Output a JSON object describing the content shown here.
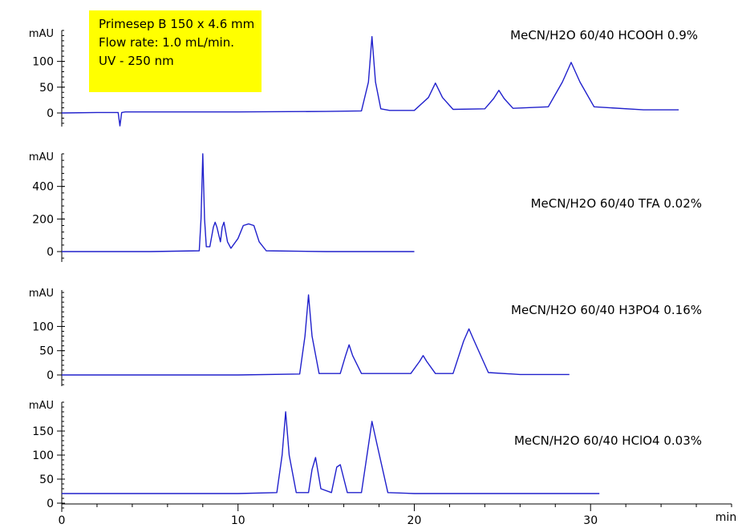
{
  "info_box": {
    "line1": "Primesep B 150 x 4.6 mm",
    "line2": "Flow rate: 1.0 mL/min.",
    "line3": "UV - 250 nm",
    "background": "#ffff00"
  },
  "colors": {
    "trace": "#2020cc",
    "axis": "#000000"
  },
  "chart_data": [
    {
      "type": "line",
      "title": "MeCN/H2O 60/40 HCOOH 0.9%",
      "ylabel": "mAU",
      "yticks": [
        0,
        50,
        100
      ],
      "ylim": [
        -10,
        160
      ],
      "grid": false,
      "series": [
        {
          "x": [
            0,
            2,
            3.2,
            3.3,
            3.4,
            3.6,
            5,
            10,
            15,
            17,
            17.4,
            17.6,
            17.8,
            18.1,
            18.6,
            20,
            20.8,
            21.2,
            21.6,
            22.2,
            24,
            24.5,
            24.8,
            25.1,
            25.6,
            27.6,
            28.4,
            28.9,
            29.4,
            30.2,
            33,
            35
          ],
          "y": [
            0,
            1,
            1,
            -25,
            1,
            2,
            2,
            2,
            3,
            4,
            60,
            148,
            60,
            8,
            5,
            5,
            30,
            58,
            30,
            7,
            8,
            28,
            44,
            28,
            9,
            12,
            60,
            98,
            60,
            12,
            6,
            6
          ]
        }
      ]
    },
    {
      "type": "line",
      "title": "MeCN/H2O 60/40  TFA 0.02%",
      "ylabel": "mAU",
      "yticks": [
        0,
        200,
        400
      ],
      "ylim": [
        -30,
        600
      ],
      "grid": false,
      "series": [
        {
          "x": [
            0,
            5,
            7.8,
            7.9,
            8.0,
            8.1,
            8.2,
            8.4,
            8.6,
            8.7,
            8.8,
            9.0,
            9.1,
            9.2,
            9.4,
            9.6,
            10,
            10.3,
            10.6,
            10.9,
            11.2,
            11.6,
            15,
            20
          ],
          "y": [
            0,
            0,
            5,
            200,
            600,
            200,
            30,
            30,
            150,
            180,
            150,
            60,
            150,
            180,
            60,
            20,
            80,
            160,
            170,
            160,
            60,
            5,
            0,
            0
          ]
        }
      ]
    },
    {
      "type": "line",
      "title": "MeCN/H2O 60/40 H3PO4 0.16%",
      "ylabel": "mAU",
      "yticks": [
        0,
        50,
        100
      ],
      "ylim": [
        -10,
        175
      ],
      "grid": false,
      "series": [
        {
          "x": [
            0,
            5,
            10,
            13.5,
            13.8,
            14.0,
            14.2,
            14.6,
            15.8,
            16.1,
            16.3,
            16.5,
            17,
            19.8,
            20.3,
            20.5,
            20.7,
            21.2,
            22.2,
            22.8,
            23.1,
            23.4,
            24.2,
            26,
            28.8
          ],
          "y": [
            0,
            0,
            0,
            2,
            80,
            165,
            80,
            3,
            3,
            40,
            62,
            40,
            3,
            3,
            28,
            40,
            28,
            3,
            3,
            70,
            95,
            70,
            5,
            1,
            1
          ]
        }
      ]
    },
    {
      "type": "line",
      "title": "MeCN/H2O 60/40 HClO4 0.03%",
      "ylabel": "mAU",
      "yticks": [
        0,
        50,
        100,
        150
      ],
      "ylim": [
        -10,
        210
      ],
      "grid": false,
      "series": [
        {
          "x": [
            0,
            5,
            10,
            12.2,
            12.5,
            12.7,
            12.9,
            13.3,
            14.0,
            14.2,
            14.4,
            14.7,
            15.3,
            15.6,
            15.8,
            16.2,
            17.0,
            17.4,
            17.6,
            17.9,
            18.5,
            20,
            25,
            30.5
          ],
          "y": [
            20,
            20,
            20,
            22,
            100,
            190,
            100,
            22,
            22,
            70,
            95,
            30,
            22,
            75,
            80,
            22,
            22,
            120,
            170,
            120,
            22,
            20,
            20,
            20
          ]
        }
      ]
    }
  ],
  "x_axis": {
    "label": "min",
    "ticks": [
      0,
      10,
      20,
      30
    ],
    "range": [
      0,
      38
    ]
  }
}
